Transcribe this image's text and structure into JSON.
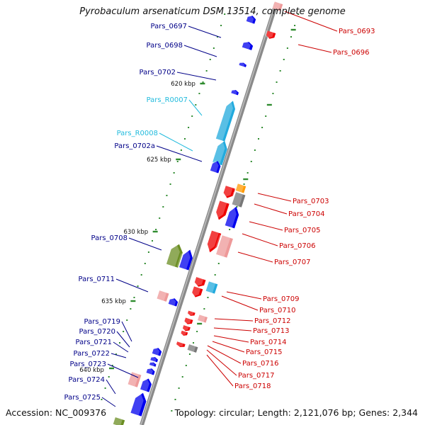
{
  "title": "Pyrobaculum arsenaticum DSM 13514, complete genome",
  "footer": {
    "accession": "Accession: NC_009376",
    "summary": "Topology: circular; Length: 2,121,076 bp; Genes: 2,344"
  },
  "scale_ticks": [
    "620 kbp",
    "625 kbp",
    "630 kbp",
    "635 kbp",
    "640 kbp"
  ],
  "colors": {
    "forward_gene": "#ee0000",
    "reverse_gene": "#0000ee",
    "rna_gene": "#22aadd",
    "other_feature": "#6b8e23",
    "pseudo_or_pink": "#ee9999",
    "grey_feature": "#777777",
    "orange_feature": "#ff9900",
    "backbone": "#888888",
    "label_left": "#000088",
    "label_rna": "#22bbdd",
    "label_right": "#cc0000"
  },
  "left_labels": [
    {
      "name": "Pars_0697",
      "type": "protein"
    },
    {
      "name": "Pars_0698",
      "type": "protein"
    },
    {
      "name": "Pars_0702",
      "type": "protein"
    },
    {
      "name": "Pars_R0007",
      "type": "rna"
    },
    {
      "name": "Pars_R0008",
      "type": "rna"
    },
    {
      "name": "Pars_0702a",
      "type": "protein"
    },
    {
      "name": "Pars_0708",
      "type": "protein"
    },
    {
      "name": "Pars_0711",
      "type": "protein"
    },
    {
      "name": "Pars_0719",
      "type": "protein"
    },
    {
      "name": "Pars_0720",
      "type": "protein"
    },
    {
      "name": "Pars_0721",
      "type": "protein"
    },
    {
      "name": "Pars_0722",
      "type": "protein"
    },
    {
      "name": "Pars_0723",
      "type": "protein"
    },
    {
      "name": "Pars_0724",
      "type": "protein"
    },
    {
      "name": "Pars_0725",
      "type": "protein"
    }
  ],
  "right_labels": [
    {
      "name": "Pars_0693"
    },
    {
      "name": "Pars_0696"
    },
    {
      "name": "Pars_0703"
    },
    {
      "name": "Pars_0704"
    },
    {
      "name": "Pars_0705"
    },
    {
      "name": "Pars_0706"
    },
    {
      "name": "Pars_0707"
    },
    {
      "name": "Pars_0709"
    },
    {
      "name": "Pars_0710"
    },
    {
      "name": "Pars_0712"
    },
    {
      "name": "Pars_0713"
    },
    {
      "name": "Pars_0714"
    },
    {
      "name": "Pars_0715"
    },
    {
      "name": "Pars_0716"
    },
    {
      "name": "Pars_0717"
    },
    {
      "name": "Pars_0718"
    }
  ]
}
